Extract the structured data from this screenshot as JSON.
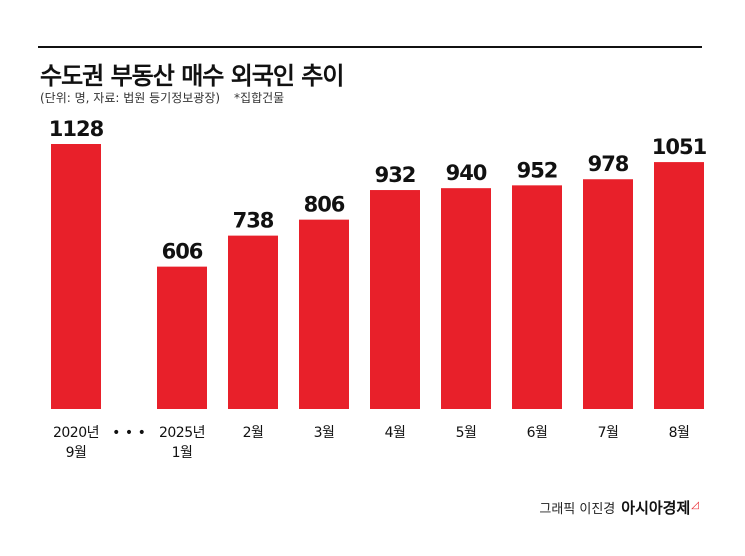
{
  "title": "수도권 부동산 매수 외국인 추이",
  "subtitle": "(단위: 명, 자료: 법원 등기정보광장)",
  "note": "*집합건물",
  "credit": {
    "prefix": "그래픽 이진경",
    "brand": "아시아경제"
  },
  "chart_data": {
    "type": "bar",
    "title": "수도권 부동산 매수 외국인 추이",
    "categories": [
      [
        "2020년",
        "9월"
      ],
      [
        "2025년",
        "1월"
      ],
      [
        "2월"
      ],
      [
        "3월"
      ],
      [
        "4월"
      ],
      [
        "5월"
      ],
      [
        "6월"
      ],
      [
        "7월"
      ],
      [
        "8월"
      ]
    ],
    "values": [
      1128,
      606,
      738,
      806,
      932,
      940,
      952,
      978,
      1051
    ],
    "axis_break": {
      "after_index": 0,
      "symbol": "• • •"
    },
    "ylim": [
      0,
      1128
    ],
    "bar_color": "#e8202a",
    "grid": false,
    "legend": "none"
  }
}
